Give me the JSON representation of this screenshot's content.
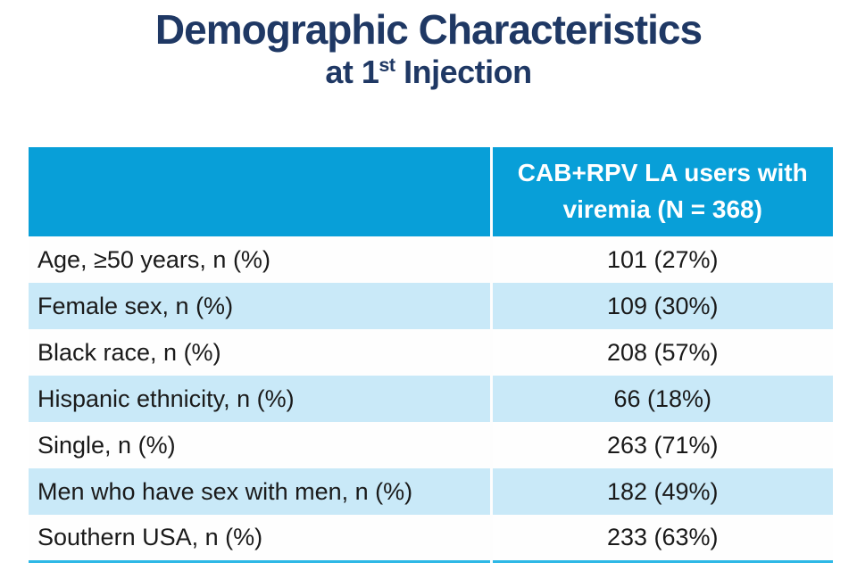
{
  "title": {
    "line1": "Demographic Characteristics",
    "line2": {
      "prefix": "at 1",
      "superscript": "st",
      "suffix": " Injection"
    }
  },
  "table": {
    "header": {
      "label_column": "",
      "value_column": "CAB+RPV LA users with viremia (N = 368)"
    },
    "rows": [
      {
        "label": "Age, ≥50 years, n (%)",
        "value": "101 (27%)"
      },
      {
        "label": "Female sex, n (%)",
        "value": "109 (30%)"
      },
      {
        "label": "Black race, n (%)",
        "value": "208 (57%)"
      },
      {
        "label": "Hispanic ethnicity, n (%)",
        "value": "66 (18%)"
      },
      {
        "label": "Single, n (%)",
        "value": "263 (71%)"
      },
      {
        "label": "Men who have sex with men, n (%)",
        "value": "182 (49%)"
      },
      {
        "label": "Southern USA, n (%)",
        "value": "233 (63%)"
      }
    ]
  },
  "colors": {
    "title_text": "#1F3864",
    "header_bg": "#089FD8",
    "header_text": "#FFFFFF",
    "alt_row_bg": "#C9E9F8",
    "body_text": "#1A1A1A",
    "bottom_rule": "#2EB8E6"
  }
}
